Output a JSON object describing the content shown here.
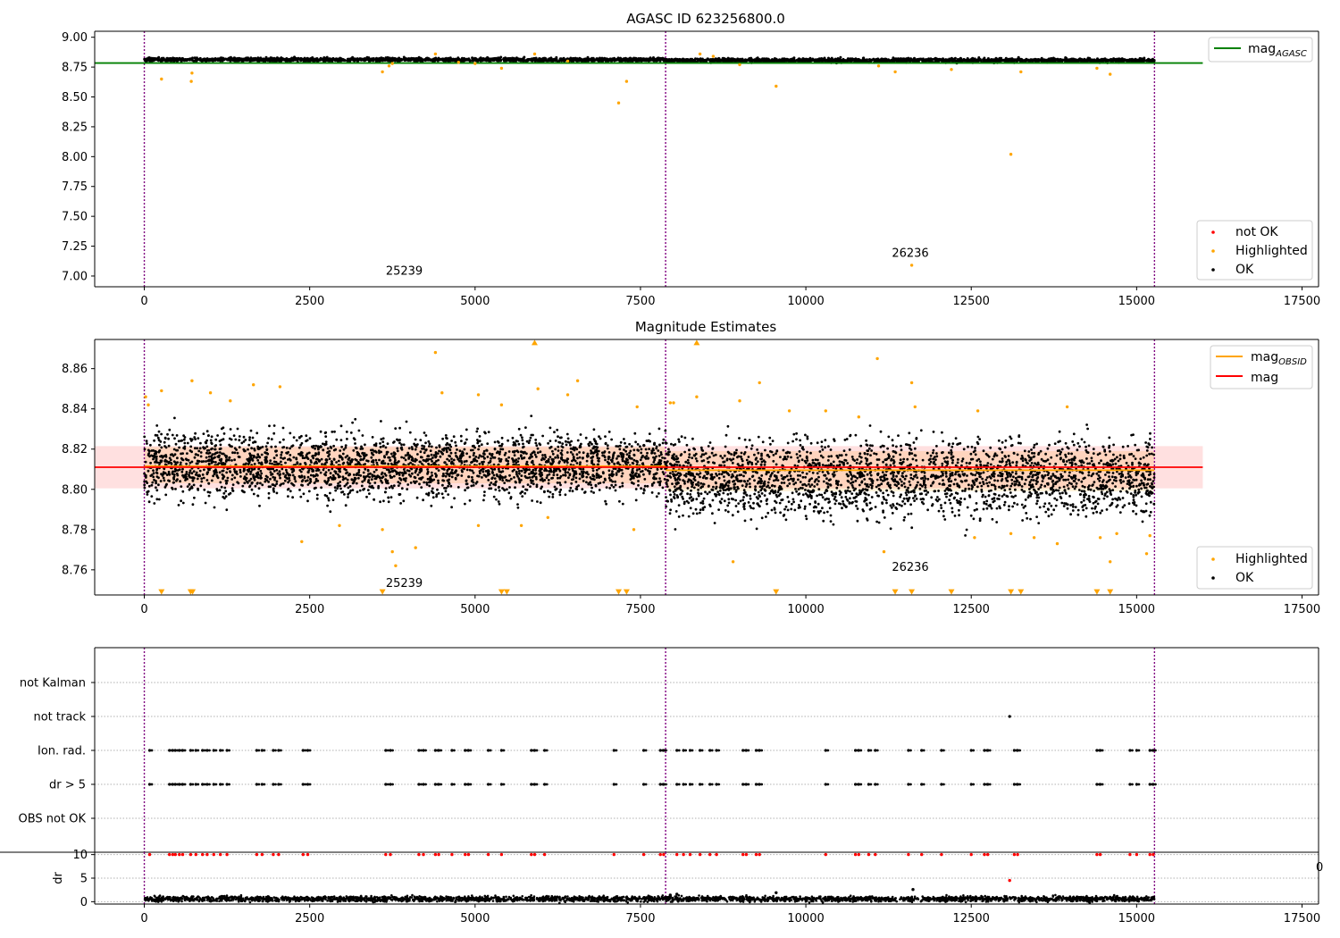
{
  "chart_data": [
    {
      "type": "scatter",
      "title": "AGASC ID 623256800.0",
      "xlim": [
        -750,
        17750
      ],
      "ylim": [
        6.91,
        9.05
      ],
      "xticks": [
        0,
        2500,
        5000,
        7500,
        10000,
        12500,
        15000,
        17500
      ],
      "xtick_labels": [
        "0",
        "2500",
        "5000",
        "7500",
        "10000",
        "12500",
        "15000",
        "17500"
      ],
      "yticks": [
        7.0,
        7.25,
        7.5,
        7.75,
        8.0,
        8.25,
        8.5,
        8.75,
        9.0
      ],
      "ytick_labels": [
        "7.00",
        "7.25",
        "7.50",
        "7.75",
        "8.00",
        "8.25",
        "8.50",
        "8.75",
        "9.00"
      ],
      "obsid_boundaries": [
        0,
        7880,
        15270
      ],
      "obsid_labels": [
        {
          "text": "25239",
          "x": 3650,
          "y": 7.01
        },
        {
          "text": "26236",
          "x": 11300,
          "y": 7.16
        }
      ],
      "lines": [
        {
          "name": "mag_AGASC",
          "color": "#008000",
          "x": [
            -750,
            16000
          ],
          "y": [
            8.784,
            8.784
          ]
        }
      ],
      "series": [
        {
          "name": "Highlighted",
          "color": "#ffa500",
          "x": [
            260,
            710,
            720,
            3600,
            3700,
            3750,
            4400,
            4750,
            5000,
            5400,
            5900,
            6400,
            7170,
            7290,
            8400,
            8600,
            9000,
            9550,
            11100,
            11350,
            11600,
            12200,
            13100,
            13250,
            14400,
            14600
          ],
          "y": [
            8.65,
            8.63,
            8.7,
            8.71,
            8.76,
            8.78,
            8.86,
            8.79,
            8.78,
            8.74,
            8.86,
            8.8,
            8.45,
            8.63,
            8.86,
            8.84,
            8.77,
            8.59,
            8.76,
            8.71,
            7.09,
            8.73,
            8.02,
            8.71,
            8.74,
            8.69
          ]
        }
      ],
      "dense_band": {
        "name": "OK",
        "color": "#000000",
        "segments": [
          {
            "x0": 0,
            "x1": 7880,
            "center": 8.812,
            "half_width": 0.015
          },
          {
            "x0": 7880,
            "x1": 15270,
            "center": 8.806,
            "half_width": 0.017
          }
        ]
      },
      "legends": [
        {
          "position": "top-right",
          "entries": [
            {
              "label": "mag",
              "sub": "AGASC",
              "kind": "line",
              "color": "#008000"
            }
          ]
        },
        {
          "position": "bottom-right",
          "entries": [
            {
              "label": "not OK",
              "kind": "marker",
              "color": "#ff0000"
            },
            {
              "label": "Highlighted",
              "kind": "marker",
              "color": "#ffa500"
            },
            {
              "label": "OK",
              "kind": "marker",
              "color": "#000000"
            }
          ]
        }
      ]
    },
    {
      "type": "scatter",
      "title": "Magnitude Estimates",
      "xlim": [
        -750,
        17750
      ],
      "ylim": [
        8.7475,
        8.8745
      ],
      "xticks": [
        0,
        2500,
        5000,
        7500,
        10000,
        12500,
        15000,
        17500
      ],
      "xtick_labels": [
        "0",
        "2500",
        "5000",
        "7500",
        "10000",
        "12500",
        "15000",
        "17500"
      ],
      "yticks": [
        8.76,
        8.78,
        8.8,
        8.82,
        8.84,
        8.86
      ],
      "ytick_labels": [
        "8.76",
        "8.78",
        "8.80",
        "8.82",
        "8.84",
        "8.86"
      ],
      "obsid_boundaries": [
        0,
        7880,
        15270
      ],
      "obsid_labels": [
        {
          "text": "25239",
          "x": 3650,
          "y": 8.7515
        },
        {
          "text": "26236",
          "x": 11300,
          "y": 8.7595
        }
      ],
      "bands": [
        {
          "color": "#ffa500",
          "opacity": 0.15,
          "x0": 0,
          "x1": 7880,
          "y0": 8.803,
          "y1": 8.821
        },
        {
          "color": "#ffa500",
          "opacity": 0.15,
          "x0": 7880,
          "x1": 15270,
          "y0": 8.799,
          "y1": 8.819
        },
        {
          "color": "#ff0000",
          "opacity": 0.12,
          "x0": -750,
          "x1": 16000,
          "y0": 8.8005,
          "y1": 8.8215
        }
      ],
      "lines": [
        {
          "name": "mag_OBSID",
          "color": "#ffa500",
          "x": [
            0,
            7880
          ],
          "y": [
            8.8115,
            8.8115
          ]
        },
        {
          "name": "mag_OBSID",
          "color": "#ffa500",
          "x": [
            7880,
            15270
          ],
          "y": [
            8.8095,
            8.8095
          ]
        },
        {
          "name": "mag",
          "color": "#ff0000",
          "x": [
            -750,
            16000
          ],
          "y": [
            8.811,
            8.811
          ]
        }
      ],
      "series": [
        {
          "name": "Highlighted",
          "color": "#ffa500",
          "x": [
            20,
            60,
            260,
            720,
            1000,
            1300,
            1650,
            2050,
            2380,
            2950,
            3600,
            3750,
            3800,
            4100,
            4400,
            4500,
            5050,
            5050,
            5400,
            5700,
            5950,
            6100,
            6400,
            6550,
            7400,
            7450,
            7950,
            8000,
            8350,
            8900,
            9000,
            9300,
            9750,
            10300,
            10800,
            11080,
            11180,
            11600,
            11650,
            12550,
            12600,
            13100,
            13450,
            13800,
            13950,
            14450,
            14600,
            14700,
            15150,
            15200
          ],
          "y": [
            8.846,
            8.842,
            8.849,
            8.854,
            8.848,
            8.844,
            8.852,
            8.851,
            8.774,
            8.782,
            8.78,
            8.769,
            8.762,
            8.771,
            8.868,
            8.848,
            8.847,
            8.782,
            8.842,
            8.782,
            8.85,
            8.786,
            8.847,
            8.854,
            8.78,
            8.841,
            8.843,
            8.843,
            8.846,
            8.764,
            8.844,
            8.853,
            8.839,
            8.839,
            8.836,
            8.865,
            8.769,
            8.853,
            8.841,
            8.776,
            8.839,
            8.778,
            8.776,
            8.773,
            8.841,
            8.776,
            8.764,
            8.778,
            8.768,
            8.777
          ]
        },
        {
          "name": "Highlighted (off-scale below)",
          "color": "#ffa500",
          "x": [
            260,
            700,
            730,
            3600,
            5400,
            5480,
            7170,
            7290,
            9550,
            11350,
            11600,
            12200,
            13100,
            13250,
            14400,
            14600
          ],
          "y": [
            8.749,
            8.749,
            8.749,
            8.749,
            8.749,
            8.749,
            8.749,
            8.749,
            8.749,
            8.749,
            8.749,
            8.749,
            8.749,
            8.749,
            8.749,
            8.749
          ]
        },
        {
          "name": "Highlighted (off-scale above)",
          "color": "#ffa500",
          "x": [
            5900,
            8350
          ],
          "y": [
            8.873,
            8.873
          ]
        }
      ],
      "dense_band": {
        "name": "OK",
        "color": "#000000",
        "segments": [
          {
            "x0": 0,
            "x1": 7880,
            "center": 8.812,
            "half_width": 0.016
          },
          {
            "x0": 7880,
            "x1": 15270,
            "center": 8.806,
            "half_width": 0.019
          }
        ]
      },
      "legends": [
        {
          "position": "top-right",
          "entries": [
            {
              "label": "mag",
              "sub": "OBSID",
              "kind": "line",
              "color": "#ffa500"
            },
            {
              "label": "mag",
              "kind": "line",
              "color": "#ff0000"
            }
          ]
        },
        {
          "position": "bottom-right",
          "entries": [
            {
              "label": "Highlighted",
              "kind": "marker",
              "color": "#ffa500"
            },
            {
              "label": "OK",
              "kind": "marker",
              "color": "#000000"
            }
          ]
        }
      ]
    },
    {
      "type": "scatter",
      "title": "",
      "xlim": [
        -750,
        17750
      ],
      "categories": [
        "not Kalman",
        "not track",
        "Ion. rad.",
        "dr > 5",
        "OBS not OK"
      ],
      "flag_x": [
        80,
        380,
        430,
        470,
        530,
        580,
        700,
        780,
        880,
        950,
        1050,
        1150,
        1250,
        1700,
        1780,
        1950,
        2030,
        2400,
        2470,
        3650,
        3720,
        4150,
        4220,
        4400,
        4450,
        4650,
        4850,
        4900,
        5200,
        5400,
        5850,
        5900,
        6050,
        7100,
        7550,
        7800,
        7850,
        8050,
        8150,
        8250,
        8400,
        8550,
        8650,
        9050,
        9100,
        9250,
        9300,
        10300,
        10750,
        10800,
        10950,
        11050,
        11550,
        11750,
        12050,
        12500,
        12700,
        12750,
        13150,
        13200,
        14400,
        14450,
        14900,
        15000,
        15200,
        15250
      ],
      "rows": [
        {
          "category": "not Kalman",
          "x": []
        },
        {
          "category": "not track",
          "x": [
            13080
          ]
        },
        {
          "category": "Ion. rad.",
          "use": "flag_x"
        },
        {
          "category": "dr > 5",
          "use": "flag_x"
        },
        {
          "category": "OBS not OK",
          "x": []
        }
      ],
      "obsid_boundaries": [
        0,
        7880,
        15270
      ]
    },
    {
      "type": "scatter",
      "title": "",
      "ylabel": "dr",
      "xlim": [
        -750,
        17750
      ],
      "ylim": [
        -0.5,
        10.5
      ],
      "xticks": [
        0,
        2500,
        5000,
        7500,
        10000,
        12500,
        15000,
        17500
      ],
      "xtick_labels": [
        "0",
        "2500",
        "5000",
        "7500",
        "10000",
        "12500",
        "15000",
        "17500"
      ],
      "yticks": [
        0,
        5,
        10
      ],
      "ytick_labels": [
        "0",
        "5",
        "10"
      ],
      "obsid_boundaries": [
        0,
        7880,
        15270
      ],
      "series": [
        {
          "name": "dr > 5 (clipped)",
          "color": "#ff0000",
          "use": "flag_x",
          "y": 10
        },
        {
          "name": "not track",
          "color": "#ff0000",
          "x": [
            13080
          ],
          "y": [
            4.5
          ]
        },
        {
          "name": "outliers",
          "color": "#000000",
          "x": [
            7950,
            8050,
            9550,
            11620
          ],
          "y": [
            1.4,
            1.6,
            1.9,
            2.6
          ]
        }
      ],
      "dense_band": {
        "name": "dr",
        "color": "#000000",
        "segments": [
          {
            "x0": 0,
            "x1": 15270,
            "center": 0.6,
            "half_width": 0.55
          }
        ]
      },
      "partial_tick_label": "0"
    }
  ]
}
